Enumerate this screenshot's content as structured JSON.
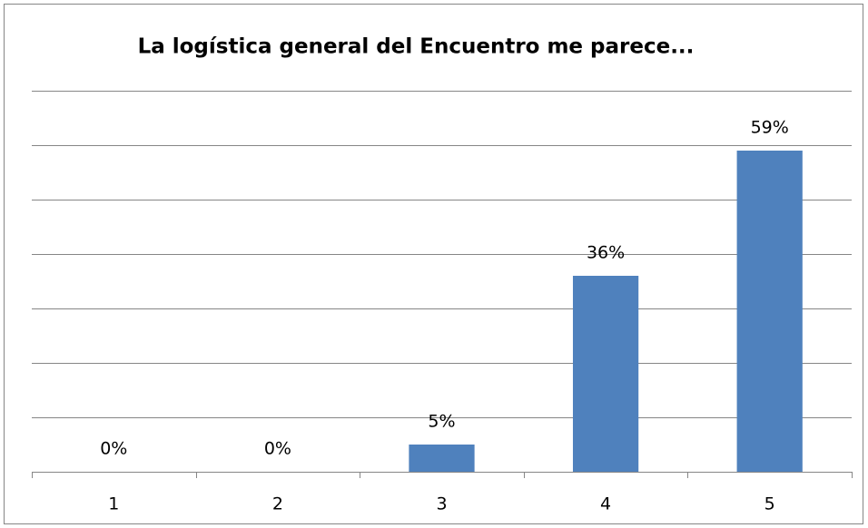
{
  "chart_data": {
    "type": "bar",
    "title": "La logística general del Encuentro me parece...",
    "categories": [
      "1",
      "2",
      "3",
      "4",
      "5"
    ],
    "values": [
      0,
      0,
      5,
      36,
      59
    ],
    "value_labels": [
      "0%",
      "0%",
      "5%",
      "36%",
      "59%"
    ],
    "color": "#4f81bd",
    "ylim": [
      0,
      70
    ],
    "yticks": [
      0,
      10,
      20,
      30,
      40,
      50,
      60,
      70
    ],
    "grid": true
  }
}
